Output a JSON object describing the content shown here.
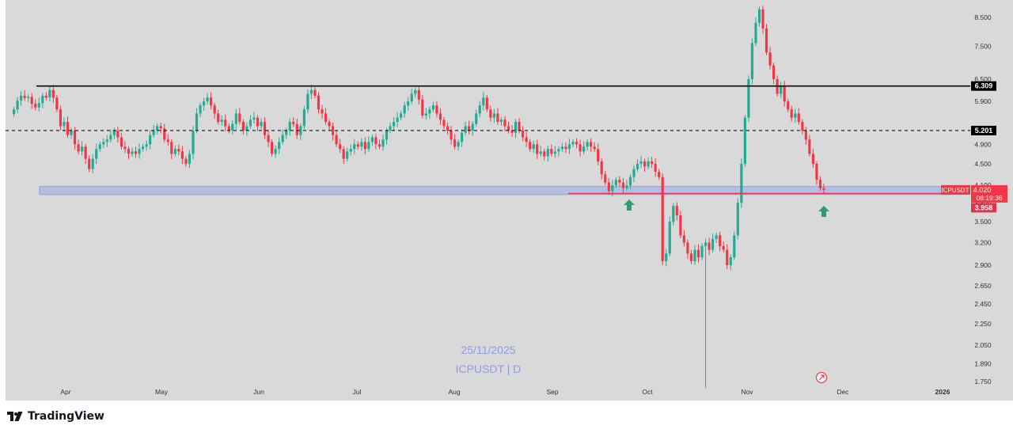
{
  "chart_data": {
    "type": "candlestick",
    "title": "ICPUSDT | D",
    "watermark_date": "25/11/2025",
    "symbol": "ICPUSDT",
    "ylim": [
      1.7,
      9.0
    ],
    "y_scale": "log",
    "y_ticks": [
      "8.500",
      "7.500",
      "6.500",
      "5.900",
      "5.200",
      "4.900",
      "4.500",
      "4.100",
      "3.800",
      "3.500",
      "3.200",
      "2.900",
      "2.650",
      "2.450",
      "2.250",
      "2.050",
      "1.890",
      "1.750"
    ],
    "x_ticks": [
      "Apr",
      "May",
      "Jun",
      "Jul",
      "Aug",
      "Sep",
      "Oct",
      "Nov",
      "Dec",
      "2026"
    ],
    "resistance_line": {
      "value": 6.309,
      "label": "6.309"
    },
    "dashed_line": {
      "value": 5.201,
      "label": "5.201"
    },
    "current_price": {
      "value": 4.02,
      "label": "4.020",
      "countdown": "08:19:36"
    },
    "low_line": {
      "value": 3.958,
      "label": "3.958"
    },
    "support_zone": [
      3.94,
      4.08
    ],
    "arrows": [
      "up",
      "up"
    ],
    "series": [
      {
        "name": "ICPUSDT",
        "close": [
          5.7,
          5.92,
          6.05,
          5.99,
          6.02,
          5.84,
          5.75,
          5.86,
          6.05,
          6.0,
          6.2,
          6.0,
          5.7,
          5.3,
          5.4,
          5.1,
          5.2,
          4.9,
          4.75,
          4.85,
          4.6,
          4.4,
          4.6,
          4.8,
          4.9,
          4.95,
          5.0,
          5.1,
          5.2,
          5.05,
          4.85,
          4.8,
          4.7,
          4.75,
          4.7,
          4.8,
          4.85,
          4.9,
          5.1,
          5.2,
          5.3,
          5.25,
          5.0,
          4.95,
          4.7,
          4.8,
          4.75,
          4.6,
          4.5,
          4.7,
          5.2,
          5.6,
          5.8,
          5.9,
          6.0,
          5.8,
          5.6,
          5.4,
          5.45,
          5.3,
          5.2,
          5.35,
          5.6,
          5.4,
          5.2,
          5.3,
          5.45,
          5.5,
          5.3,
          5.4,
          5.1,
          4.95,
          4.7,
          4.8,
          4.95,
          5.1,
          5.2,
          5.4,
          5.35,
          5.1,
          5.3,
          5.7,
          6.1,
          6.2,
          6.05,
          5.7,
          5.6,
          5.4,
          5.3,
          5.1,
          4.9,
          4.8,
          4.6,
          4.75,
          4.8,
          4.9,
          4.85,
          4.95,
          4.8,
          4.95,
          5.05,
          4.9,
          4.85,
          5.0,
          5.2,
          5.3,
          5.4,
          5.5,
          5.6,
          5.8,
          5.9,
          6.1,
          6.2,
          5.95,
          5.55,
          5.6,
          5.7,
          5.8,
          5.6,
          5.45,
          5.3,
          5.2,
          5.0,
          4.85,
          4.95,
          5.15,
          5.3,
          5.2,
          5.35,
          5.6,
          5.8,
          6.0,
          5.7,
          5.5,
          5.6,
          5.4,
          5.45,
          5.3,
          5.2,
          5.15,
          5.4,
          5.2,
          5.05,
          4.95,
          4.8,
          4.9,
          4.7,
          4.75,
          4.65,
          4.8,
          4.7,
          4.75,
          4.8,
          4.85,
          4.8,
          4.9,
          4.95,
          4.9,
          4.75,
          4.85,
          4.95,
          4.85,
          4.8,
          4.55,
          4.3,
          4.15,
          4.0,
          4.1,
          4.2,
          4.15,
          4.05,
          4.1,
          4.25,
          4.4,
          4.5,
          4.55,
          4.45,
          4.55,
          4.5,
          4.35,
          4.25,
          2.95,
          3.05,
          3.5,
          3.75,
          3.6,
          3.3,
          3.2,
          3.05,
          2.95,
          3.1,
          3.0,
          3.15,
          3.2,
          3.1,
          3.25,
          3.3,
          3.15,
          3.1,
          2.9,
          3.0,
          3.3,
          3.8,
          4.5,
          5.5,
          6.5,
          7.6,
          8.3,
          8.8,
          8.1,
          7.3,
          6.9,
          6.5,
          6.1,
          6.3,
          5.9,
          5.7,
          5.5,
          5.6,
          5.4,
          5.2,
          5.0,
          4.7,
          4.5,
          4.2,
          4.05,
          4.02
        ]
      }
    ]
  },
  "footer": {
    "brand": "TradingView"
  }
}
